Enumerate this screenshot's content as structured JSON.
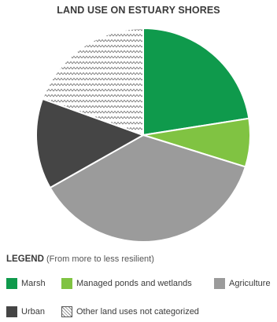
{
  "chart_data": {
    "type": "pie",
    "title": "LAND USE ON ESTUARY SHORES",
    "slices": [
      {
        "label": "Marsh",
        "value": 22.5,
        "color": "#0f9a4c",
        "pattern": "solid"
      },
      {
        "label": "Managed ponds and wetlands",
        "value": 7.3,
        "color": "#80c342",
        "pattern": "solid"
      },
      {
        "label": "Agriculture",
        "value": 37.0,
        "color": "#9b9b9b",
        "pattern": "solid"
      },
      {
        "label": "Urban",
        "value": 13.7,
        "color": "#454545",
        "pattern": "solid"
      },
      {
        "label": "Other land uses not categorized",
        "value": 19.5,
        "color": "#ffffff",
        "pattern": "zigzag"
      }
    ],
    "start_angle_deg": 0,
    "direction": "clockwise"
  },
  "legend": {
    "heading": "LEGEND",
    "subheading": "(From more to less resilient)",
    "items": [
      {
        "label": "Marsh",
        "color": "#0f9a4c",
        "pattern": "solid"
      },
      {
        "label": "Managed ponds and wetlands",
        "color": "#80c342",
        "pattern": "solid"
      },
      {
        "label": "Agriculture",
        "color": "#9b9b9b",
        "pattern": "solid"
      },
      {
        "label": "Urban",
        "color": "#454545",
        "pattern": "solid"
      },
      {
        "label": "Other land uses not categorized",
        "color": "#ffffff",
        "pattern": "zigzag"
      }
    ]
  }
}
